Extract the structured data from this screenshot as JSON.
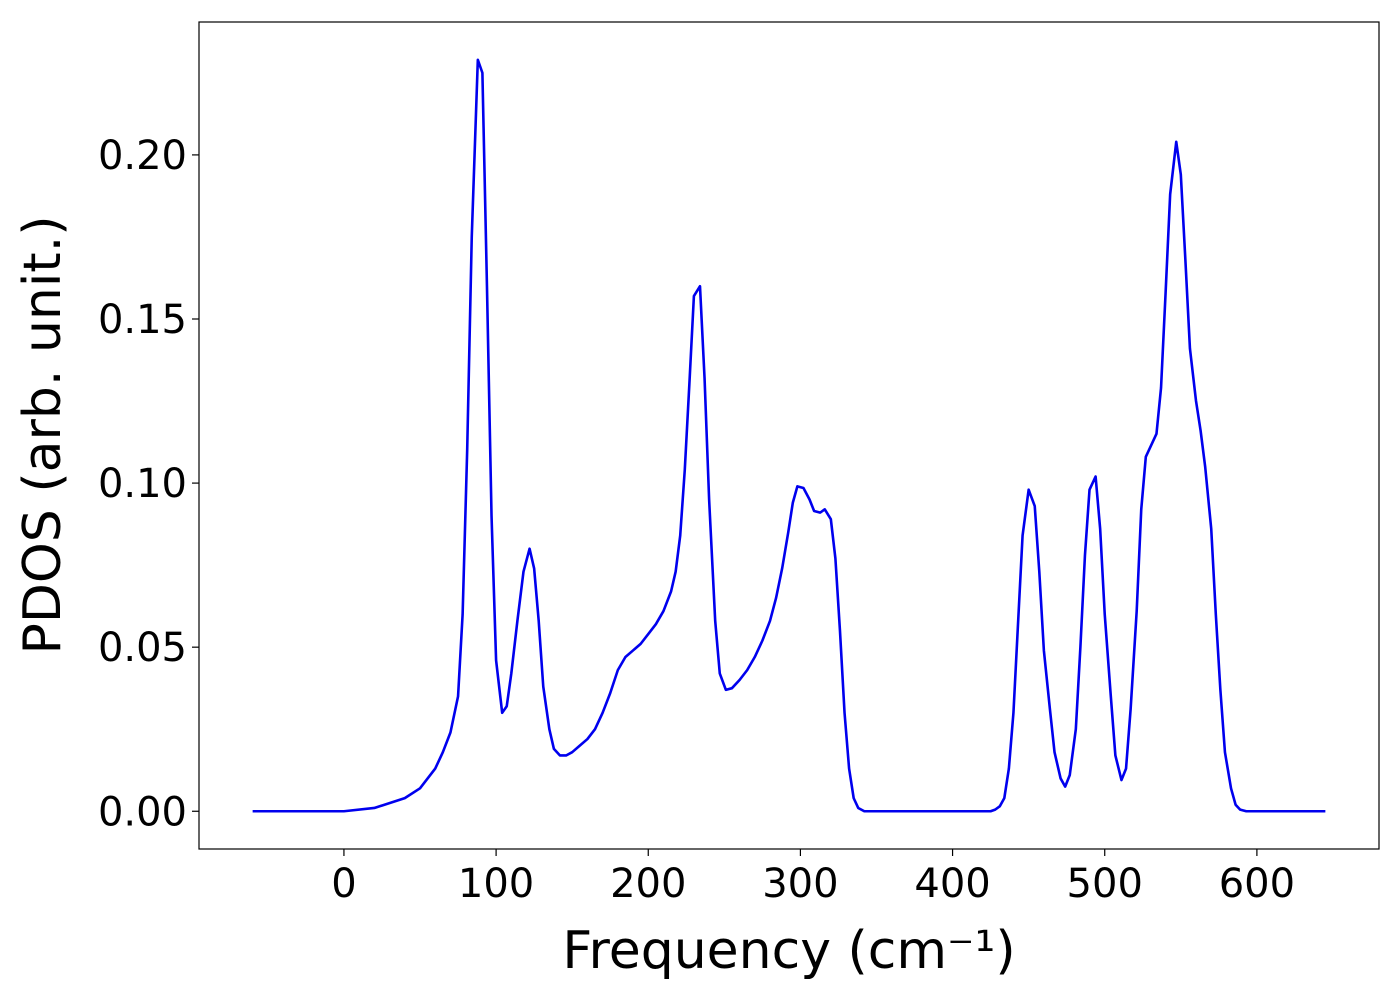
{
  "chart_data": {
    "type": "line",
    "xlabel": "Frequency (cm⁻¹)",
    "ylabel": "PDOS (arb. unit.)",
    "xlim": [
      -95.25,
      680.25
    ],
    "ylim": [
      -0.0115,
      0.2405
    ],
    "xticks": [
      0,
      100,
      200,
      300,
      400,
      500,
      600
    ],
    "yticks": [
      {
        "value": 0,
        "label": "0.00"
      },
      {
        "value": 0.05,
        "label": "0.05"
      },
      {
        "value": 0.1,
        "label": "0.10"
      },
      {
        "value": 0.15,
        "label": "0.15"
      },
      {
        "value": 0.2,
        "label": "0.20"
      }
    ],
    "x": [
      -60,
      0,
      20,
      40,
      50,
      60,
      65,
      70,
      75,
      78,
      81,
      84,
      88,
      91,
      94,
      97,
      100,
      104,
      107,
      110,
      114,
      118,
      122,
      125,
      128,
      131,
      135,
      138,
      142,
      146,
      150,
      155,
      160,
      165,
      170,
      175,
      180,
      185,
      190,
      195,
      200,
      205,
      210,
      215,
      218,
      221,
      224,
      227,
      230,
      234,
      237,
      240,
      244,
      247,
      251,
      255,
      260,
      265,
      270,
      275,
      280,
      284,
      288,
      292,
      295,
      298,
      302,
      306,
      309,
      313,
      316,
      320,
      323,
      326,
      329,
      332,
      335,
      338,
      342,
      350,
      400,
      425,
      428,
      431,
      434,
      437,
      440,
      443,
      446,
      450,
      454,
      457,
      460,
      464,
      467,
      471,
      474,
      477,
      481,
      484,
      487,
      490,
      494,
      497,
      500,
      504,
      507,
      511,
      514,
      517,
      521,
      524,
      527,
      531,
      534,
      537,
      540,
      543,
      547,
      550,
      553,
      556,
      560,
      563,
      566,
      570,
      573,
      576,
      579,
      583,
      586,
      589,
      593,
      645
    ],
    "series": [
      {
        "name": "PDOS",
        "color": "#0000ee",
        "values": [
          0,
          0,
          0.001,
          0.004,
          0.007,
          0.013,
          0.018,
          0.024,
          0.035,
          0.06,
          0.11,
          0.175,
          0.229,
          0.225,
          0.16,
          0.09,
          0.046,
          0.03,
          0.032,
          0.042,
          0.058,
          0.073,
          0.08,
          0.074,
          0.058,
          0.038,
          0.025,
          0.019,
          0.017,
          0.017,
          0.018,
          0.02,
          0.022,
          0.025,
          0.03,
          0.036,
          0.043,
          0.047,
          0.049,
          0.051,
          0.054,
          0.057,
          0.061,
          0.067,
          0.073,
          0.084,
          0.104,
          0.13,
          0.157,
          0.16,
          0.132,
          0.095,
          0.058,
          0.042,
          0.037,
          0.0375,
          0.04,
          0.043,
          0.047,
          0.052,
          0.058,
          0.065,
          0.074,
          0.085,
          0.094,
          0.099,
          0.0985,
          0.095,
          0.0915,
          0.091,
          0.092,
          0.089,
          0.077,
          0.055,
          0.03,
          0.013,
          0.004,
          0.001,
          0,
          0,
          0,
          0,
          0.0005,
          0.0015,
          0.004,
          0.013,
          0.03,
          0.057,
          0.084,
          0.098,
          0.093,
          0.073,
          0.049,
          0.031,
          0.018,
          0.01,
          0.0075,
          0.011,
          0.025,
          0.05,
          0.078,
          0.098,
          0.102,
          0.086,
          0.06,
          0.035,
          0.017,
          0.0095,
          0.013,
          0.031,
          0.061,
          0.092,
          0.108,
          0.112,
          0.115,
          0.129,
          0.158,
          0.188,
          0.204,
          0.194,
          0.168,
          0.141,
          0.125,
          0.116,
          0.105,
          0.086,
          0.06,
          0.037,
          0.018,
          0.007,
          0.002,
          0.0005,
          0,
          0
        ]
      }
    ]
  }
}
